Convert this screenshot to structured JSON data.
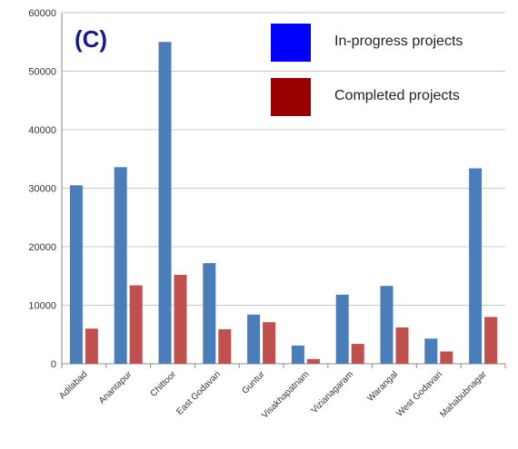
{
  "chart_data": {
    "type": "bar",
    "title": "",
    "panel_label": "(C)",
    "xlabel": "",
    "ylabel": "",
    "ylim": [
      0,
      60000
    ],
    "yticks": [
      0,
      10000,
      20000,
      30000,
      40000,
      50000,
      60000
    ],
    "grid": true,
    "legend_position": "top-right",
    "categories": [
      "Adilabad",
      "Anantapur",
      "Chittoor",
      "East Godavari",
      "Guntur",
      "Visakhapatnam",
      "Vizianagaram",
      "Warangal",
      "West Godavari",
      "Mahabubnagar"
    ],
    "series": [
      {
        "name": "In-progress projects",
        "color": "#4a7ebb",
        "legend_color": "#0000ff",
        "values": [
          30500,
          33600,
          55000,
          17200,
          8400,
          3100,
          11800,
          13300,
          4300,
          33400
        ]
      },
      {
        "name": "Completed projects",
        "color": "#c0504d",
        "legend_color": "#990000",
        "values": [
          6000,
          13400,
          15200,
          5900,
          7100,
          800,
          3400,
          6200,
          2100,
          8000
        ]
      }
    ]
  }
}
